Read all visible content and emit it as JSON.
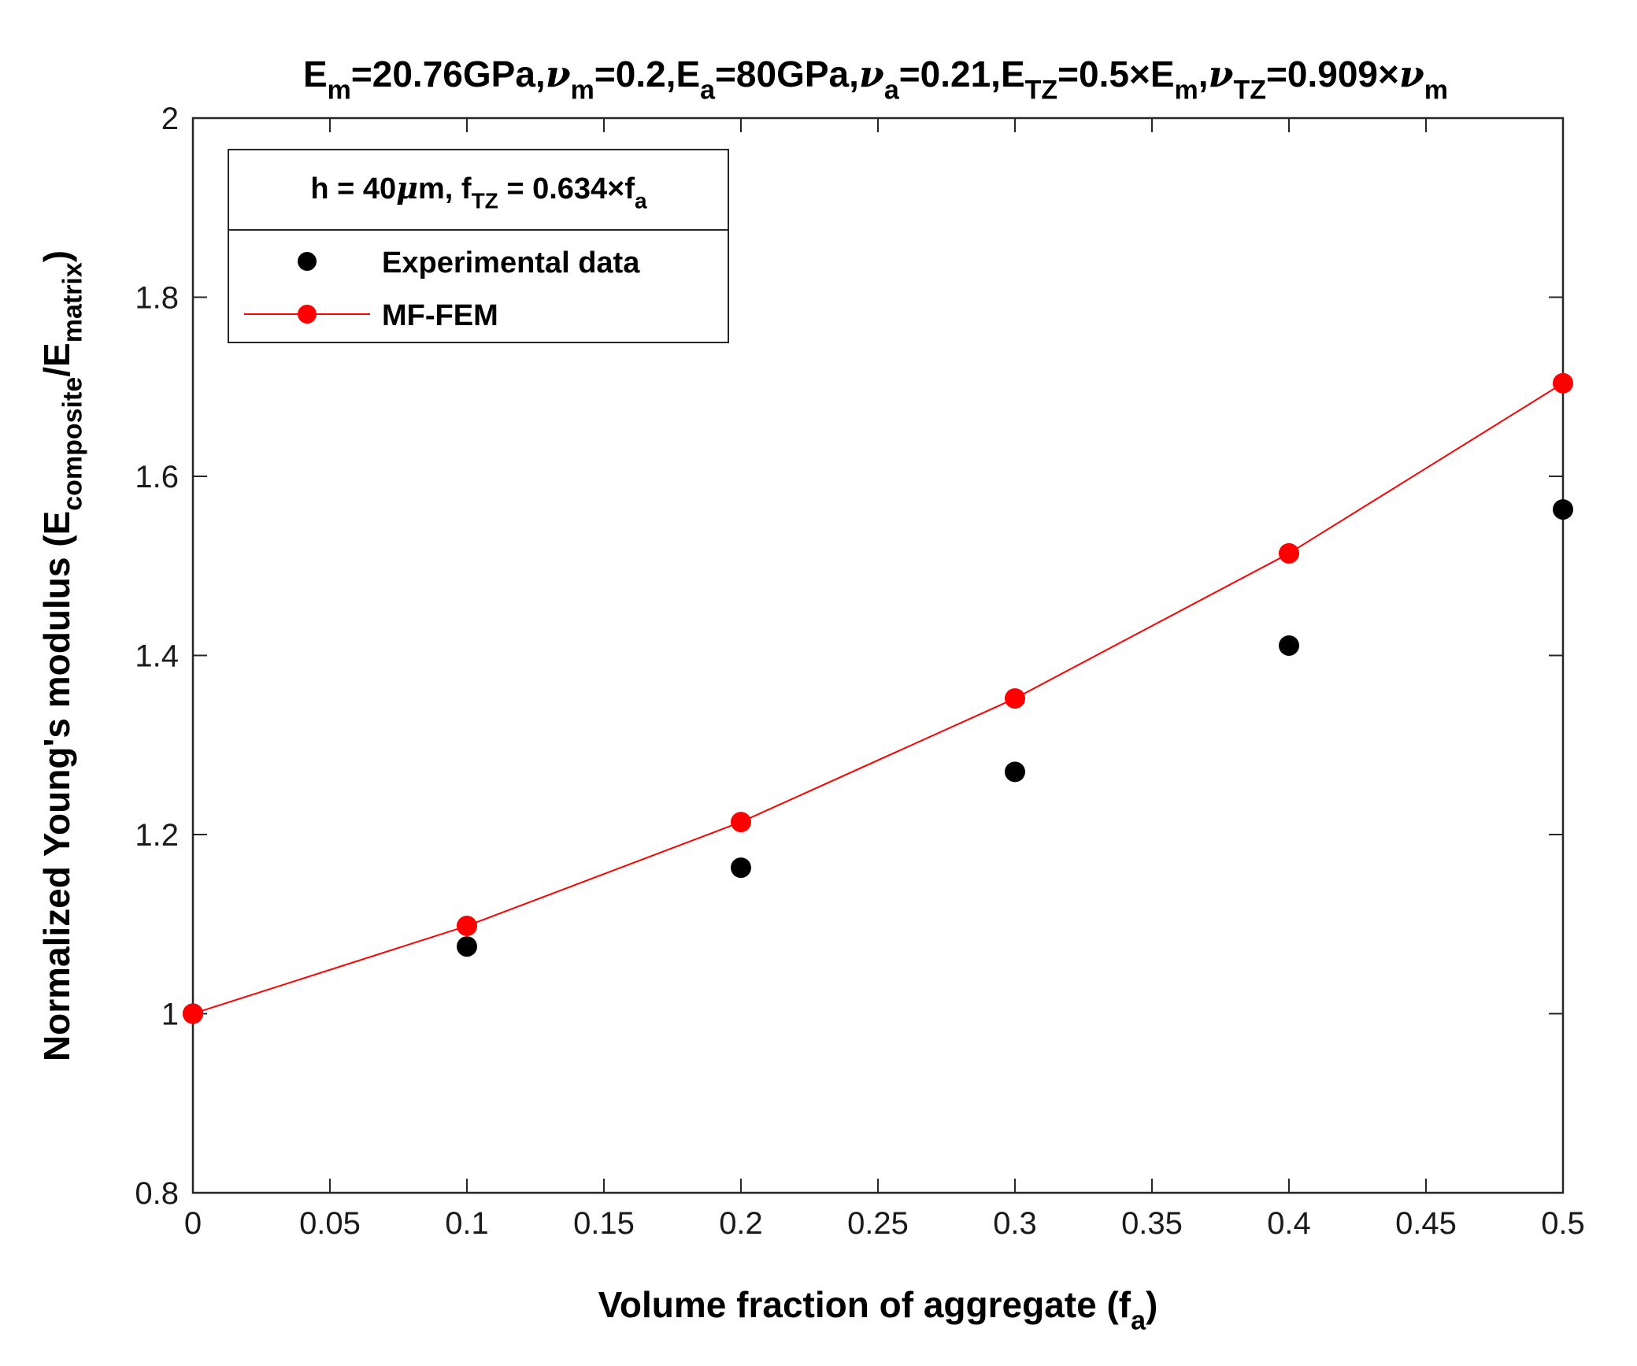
{
  "chart_data": {
    "type": "scatter",
    "title_parts": [
      {
        "text": "E"
      },
      {
        "text": "m",
        "sub": true
      },
      {
        "text": "=20.76GPa,"
      },
      {
        "text": "ν",
        "greek": true
      },
      {
        "text": "m",
        "sub": true
      },
      {
        "text": "=0.2,E"
      },
      {
        "text": "a",
        "sub": true
      },
      {
        "text": "=80GPa,"
      },
      {
        "text": "ν",
        "greek": true
      },
      {
        "text": "a",
        "sub": true
      },
      {
        "text": "=0.21,E"
      },
      {
        "text": "TZ",
        "sub": true
      },
      {
        "text": "=0.5×E"
      },
      {
        "text": "m",
        "sub": true
      },
      {
        "text": ","
      },
      {
        "text": "ν",
        "greek": true
      },
      {
        "text": "TZ",
        "sub": true
      },
      {
        "text": "=0.909×"
      },
      {
        "text": "ν",
        "greek": true
      },
      {
        "text": "m",
        "sub": true
      }
    ],
    "xlabel_parts": [
      {
        "text": "Volume fraction of aggregate (f"
      },
      {
        "text": "a",
        "sub": true
      },
      {
        "text": ")"
      }
    ],
    "ylabel_parts": [
      {
        "text": "Normalized Young's modulus (E"
      },
      {
        "text": "composite",
        "sub": true
      },
      {
        "text": "/E"
      },
      {
        "text": "matrix",
        "sub": true
      },
      {
        "text": ")"
      }
    ],
    "xlim": [
      0,
      0.5
    ],
    "ylim": [
      0.8,
      2
    ],
    "xticks": [
      0,
      0.05,
      0.1,
      0.15,
      0.2,
      0.25,
      0.3,
      0.35,
      0.4,
      0.45,
      0.5
    ],
    "xtick_labels": [
      "0",
      "0.05",
      "0.1",
      "0.15",
      "0.2",
      "0.25",
      "0.3",
      "0.35",
      "0.4",
      "0.45",
      "0.5"
    ],
    "yticks": [
      0.8,
      1,
      1.2,
      1.4,
      1.6,
      1.8,
      2
    ],
    "ytick_labels": [
      "0.8",
      "1",
      "1.2",
      "1.4",
      "1.6",
      "1.8",
      "2"
    ],
    "legend": {
      "location": "top-left",
      "header_parts": [
        {
          "text": "h = 40"
        },
        {
          "text": "μ",
          "greek": true
        },
        {
          "text": "m,    f"
        },
        {
          "text": "TZ",
          "sub": true
        },
        {
          "text": " = 0.634×f"
        },
        {
          "text": "a",
          "sub": true
        }
      ]
    },
    "series": [
      {
        "name": "Experimental data",
        "style": "markers",
        "color": "#000000",
        "x": [
          0,
          0.1,
          0.2,
          0.3,
          0.4,
          0.5
        ],
        "y": [
          1.0,
          1.075,
          1.163,
          1.27,
          1.411,
          1.563
        ]
      },
      {
        "name": "MF-FEM",
        "style": "line+markers",
        "color": "#ff0000",
        "x": [
          0,
          0.1,
          0.2,
          0.3,
          0.4,
          0.5
        ],
        "y": [
          1.0,
          1.098,
          1.214,
          1.352,
          1.514,
          1.704
        ]
      }
    ]
  }
}
